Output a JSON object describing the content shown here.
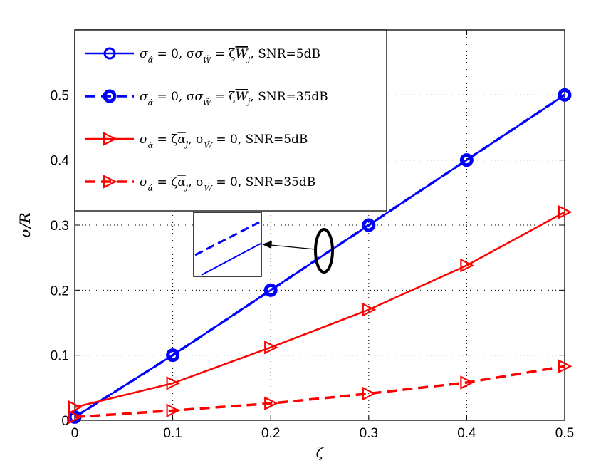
{
  "chart_data": {
    "type": "line",
    "xlabel": "ζ",
    "ylabel": "σ/R",
    "xlim": [
      0,
      0.5
    ],
    "ylim": [
      0,
      0.6
    ],
    "x_ticks": [
      "0",
      "0.1",
      "0.2",
      "0.3",
      "0.4",
      "0.5"
    ],
    "y_ticks": [
      "0",
      "0.1",
      "0.2",
      "0.3",
      "0.4",
      "0.5"
    ],
    "grid": true,
    "legend_position": "top-left",
    "x": [
      0,
      0.1,
      0.2,
      0.3,
      0.4,
      0.5
    ],
    "series": [
      {
        "name": "σα̂ = 0, σŴ = ζW̄j, SNR=5dB",
        "values": [
          0.005,
          0.1,
          0.2,
          0.3,
          0.4,
          0.5
        ],
        "color": "#0000ff",
        "line": "solid",
        "marker": "circle"
      },
      {
        "name": "σα̂ = 0, σŴ = ζW̄j, SNR=35dB",
        "values": [
          0.005,
          0.1,
          0.2,
          0.3,
          0.4,
          0.5
        ],
        "color": "#0000ff",
        "line": "dashed",
        "marker": "circle"
      },
      {
        "name": "σα̂ = ζᾱj, σŴ = 0, SNR=5dB",
        "values": [
          0.02,
          0.057,
          0.112,
          0.17,
          0.238,
          0.32
        ],
        "color": "#ff0000",
        "line": "solid",
        "marker": "triangle-right"
      },
      {
        "name": "σα̂ = ζᾱj, σŴ = 0, SNR=35dB",
        "values": [
          0.005,
          0.015,
          0.026,
          0.041,
          0.058,
          0.083
        ],
        "color": "#ff0000",
        "line": "dashed",
        "marker": "triangle-right"
      }
    ],
    "legend": [
      {
        "lead": "σ",
        "mid1": " = 0, σ",
        "mid2": " = ζ",
        "sym": "W",
        "tail": ", SNR=5dB"
      },
      {
        "lead": "σ",
        "mid1": " = 0, σ",
        "mid2": " = ζ",
        "sym": "W",
        "tail": ", SNR=35dB"
      },
      {
        "lead": "σ",
        "mid1": " = ζ",
        "sym": "α",
        "mid2": ", σ",
        "tail": " = 0, SNR=5dB"
      },
      {
        "lead": "σ",
        "mid1": " = ζ",
        "sym": "α",
        "mid2": ", σ",
        "tail": " = 0, SNR=35dB"
      }
    ]
  }
}
